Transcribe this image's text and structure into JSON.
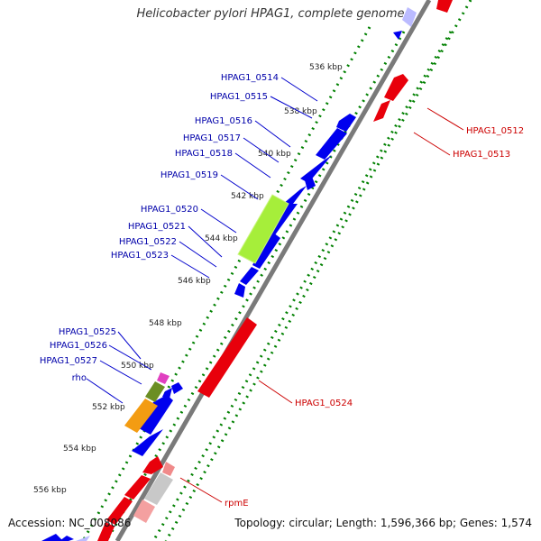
{
  "title": "Helicobacter pylori HPAG1, complete genome",
  "accession": "Accession: NC_008086",
  "topology": "Topology: circular; Length: 1,596,366 bp; Genes: 1,574",
  "colors": {
    "forward_gene": "#e8000b",
    "reverse_gene": "#0000ee",
    "label_blue": "#0000aa",
    "label_red": "#cc0000",
    "tick": "#008000",
    "backbone": "#7a7a7a",
    "highlight_green": "#a6ee3a",
    "highlight_orange": "#f39c12",
    "highlight_olive": "#6b8e23",
    "highlight_magenta": "#e040c0"
  },
  "kbp_ticks": [
    "536 kbp",
    "538 kbp",
    "540 kbp",
    "542 kbp",
    "544 kbp",
    "546 kbp",
    "548 kbp",
    "550 kbp",
    "552 kbp",
    "554 kbp",
    "556 kbp"
  ],
  "gene_labels_left": [
    "HPAG1_0514",
    "HPAG1_0515",
    "HPAG1_0516",
    "HPAG1_0517",
    "HPAG1_0518",
    "HPAG1_0519",
    "HPAG1_0520",
    "HPAG1_0521",
    "HPAG1_0522",
    "HPAG1_0523",
    "HPAG1_0525",
    "HPAG1_0526",
    "HPAG1_0527",
    "rho"
  ],
  "gene_labels_right": [
    "HPAG1_0512",
    "HPAG1_0513",
    "HPAG1_0524",
    "rpmE"
  ]
}
